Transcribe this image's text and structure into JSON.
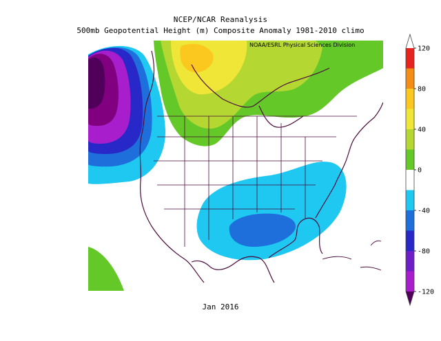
{
  "title": {
    "line1": "NCEP/NCAR Reanalysis",
    "line2": "500mb Geopotential Height (m) Composite Anomaly 1981-2010 climo"
  },
  "credit": "NOAA/ESRL Physical Sciences Division",
  "period_label": "Jan 2016",
  "colorbar": {
    "levels": [
      {
        "min": 100,
        "max": 120,
        "color": "#e8231e"
      },
      {
        "min": 80,
        "max": 100,
        "color": "#f58c16"
      },
      {
        "min": 60,
        "max": 80,
        "color": "#fac81e"
      },
      {
        "min": 40,
        "max": 60,
        "color": "#f0e637"
      },
      {
        "min": 20,
        "max": 40,
        "color": "#b4d732"
      },
      {
        "min": 0,
        "max": 20,
        "color": "#64c828"
      },
      {
        "min": -20,
        "max": 0,
        "color": "#ffffff"
      },
      {
        "min": -40,
        "max": -20,
        "color": "#1ec8f0"
      },
      {
        "min": -60,
        "max": -40,
        "color": "#1e6edc"
      },
      {
        "min": -80,
        "max": -60,
        "color": "#2828c8"
      },
      {
        "min": -100,
        "max": -80,
        "color": "#6e1ec8"
      },
      {
        "min": -120,
        "max": -100,
        "color": "#a81ecd"
      },
      {
        "min": -140,
        "max": -120,
        "color": "#800080"
      },
      {
        "min": -160,
        "max": -140,
        "color": "#50005a"
      }
    ],
    "tick_labels": [
      "120",
      "80",
      "40",
      "0",
      "-40",
      "-80",
      "-120"
    ],
    "tick_values": [
      120,
      80,
      40,
      0,
      -40,
      -80,
      -120
    ]
  },
  "colors": {
    "coast": "#4a0a3a",
    "positive_strong": "#fac81e",
    "positive_mid": "#b4d732",
    "positive_weak": "#64c828",
    "negative_weak": "#1ec8f0",
    "negative_mid": "#1e6edc",
    "negative_strong": "#2828c8",
    "negative_deep": "#50005a"
  }
}
